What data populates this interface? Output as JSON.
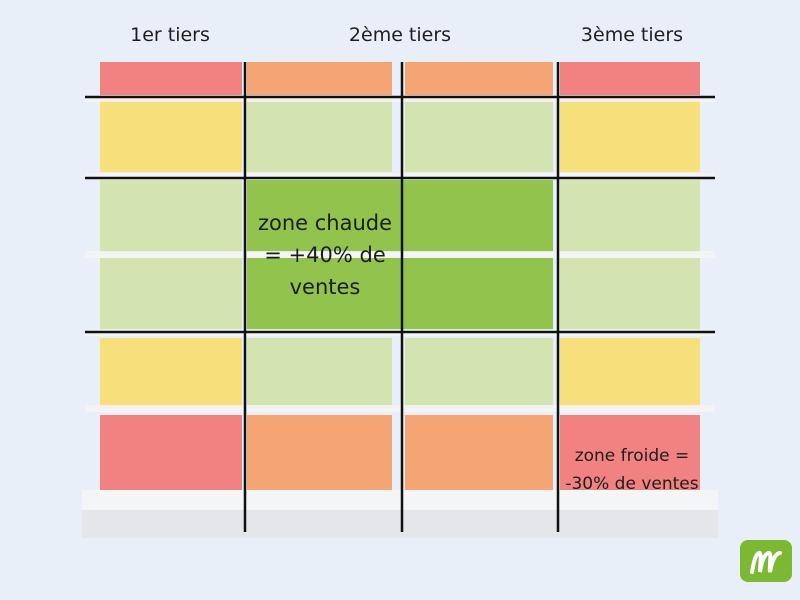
{
  "header": {
    "columns": [
      "1er tiers",
      "2ème tiers",
      "3ème tiers"
    ]
  },
  "zones": {
    "hot": "zone chaude = +40% de ventes",
    "cold": "zone froide = -30% de ventes"
  }
}
